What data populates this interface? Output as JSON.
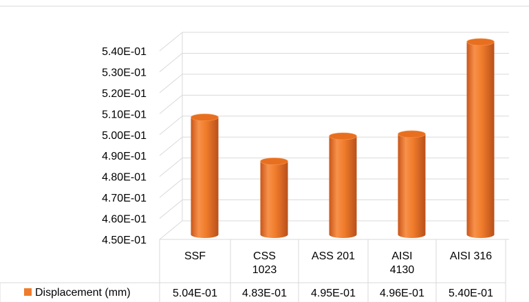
{
  "chart_data": {
    "type": "bar",
    "title": "",
    "xlabel": "",
    "ylabel": "",
    "categories": [
      [
        "SSF"
      ],
      [
        "CSS",
        "1023"
      ],
      [
        "ASS 201"
      ],
      [
        "AISI",
        "4130"
      ],
      [
        "AISI 316"
      ]
    ],
    "series": [
      {
        "name": "Displacement (mm)",
        "values": [
          0.504,
          0.483,
          0.495,
          0.496,
          0.54
        ],
        "value_labels": [
          "5.04E-01",
          "4.83E-01",
          "4.95E-01",
          "4.96E-01",
          "5.40E-01"
        ],
        "color": "#F07C2B"
      }
    ],
    "ylim": [
      0.45,
      0.54
    ],
    "yticks": [
      "4.50E-01",
      "4.60E-01",
      "4.70E-01",
      "4.80E-01",
      "4.90E-01",
      "5.00E-01",
      "5.10E-01",
      "5.20E-01",
      "5.30E-01",
      "5.40E-01"
    ],
    "bar_shape": "3d-cylinder",
    "grid": true,
    "data_table": true,
    "legend": "in-data-table"
  }
}
